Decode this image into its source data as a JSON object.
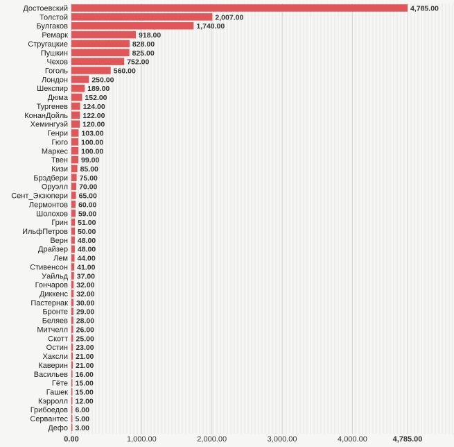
{
  "chart_data": {
    "type": "bar",
    "orientation": "horizontal",
    "bar_color": "#e15759",
    "grid": true,
    "xlim": [
      0,
      4785
    ],
    "x_ticks": [
      {
        "value": 0,
        "label": "0.00"
      },
      {
        "value": 1000,
        "label": "1,000.00"
      },
      {
        "value": 2000,
        "label": "2,000.00"
      },
      {
        "value": 3000,
        "label": "3,000.00"
      },
      {
        "value": 4000,
        "label": "4,000.00"
      },
      {
        "value": 4785,
        "label": "4,785.00"
      }
    ],
    "categories": [
      "Достоевский",
      "Толстой",
      "Булгаков",
      "Ремарк",
      "Стругацкие",
      "Пушкин",
      "Чехов",
      "Гоголь",
      "Лондон",
      "Шекспир",
      "Дюма",
      "Тургенев",
      "КонанДойль",
      "Хемингуэй",
      "Генри",
      "Гюго",
      "Маркес",
      "Твен",
      "Кизи",
      "Брэдбери",
      "Оруэлл",
      "Сент_Экзюпери",
      "Лермонтов",
      "Шолохов",
      "Грин",
      "ИльфПетров",
      "Верн",
      "Драйзер",
      "Лем",
      "Стивенсон",
      "Уайльд",
      "Гончаров",
      "Диккенс",
      "Пастернак",
      "Бронте",
      "Беляев",
      "Митчелл",
      "Скотт",
      "Остин",
      "Хаксли",
      "Каверин",
      "Васильев",
      "Гёте",
      "Гашек",
      "Кэрролл",
      "Грибоедов",
      "Сервантес",
      "Дефо"
    ],
    "values": [
      4785,
      2007,
      1740,
      918,
      828,
      825,
      752,
      560,
      250,
      189,
      152,
      124,
      122,
      120,
      103,
      100,
      100,
      99,
      85,
      75,
      70,
      65,
      60,
      59,
      51,
      50,
      48,
      48,
      44,
      41,
      37,
      32,
      32,
      30,
      29,
      28,
      26,
      25,
      23,
      21,
      21,
      16,
      15,
      15,
      12,
      6,
      5,
      3
    ],
    "value_labels": [
      "4,785.00",
      "2,007.00",
      "1,740.00",
      "918.00",
      "828.00",
      "825.00",
      "752.00",
      "560.00",
      "250.00",
      "189.00",
      "152.00",
      "124.00",
      "122.00",
      "120.00",
      "103.00",
      "100.00",
      "100.00",
      "99.00",
      "85.00",
      "75.00",
      "70.00",
      "65.00",
      "60.00",
      "59.00",
      "51.00",
      "50.00",
      "48.00",
      "48.00",
      "44.00",
      "41.00",
      "37.00",
      "32.00",
      "32.00",
      "30.00",
      "29.00",
      "28.00",
      "26.00",
      "25.00",
      "23.00",
      "21.00",
      "21.00",
      "16.00",
      "15.00",
      "15.00",
      "12.00",
      "6.00",
      "5.00",
      "3.00"
    ]
  }
}
